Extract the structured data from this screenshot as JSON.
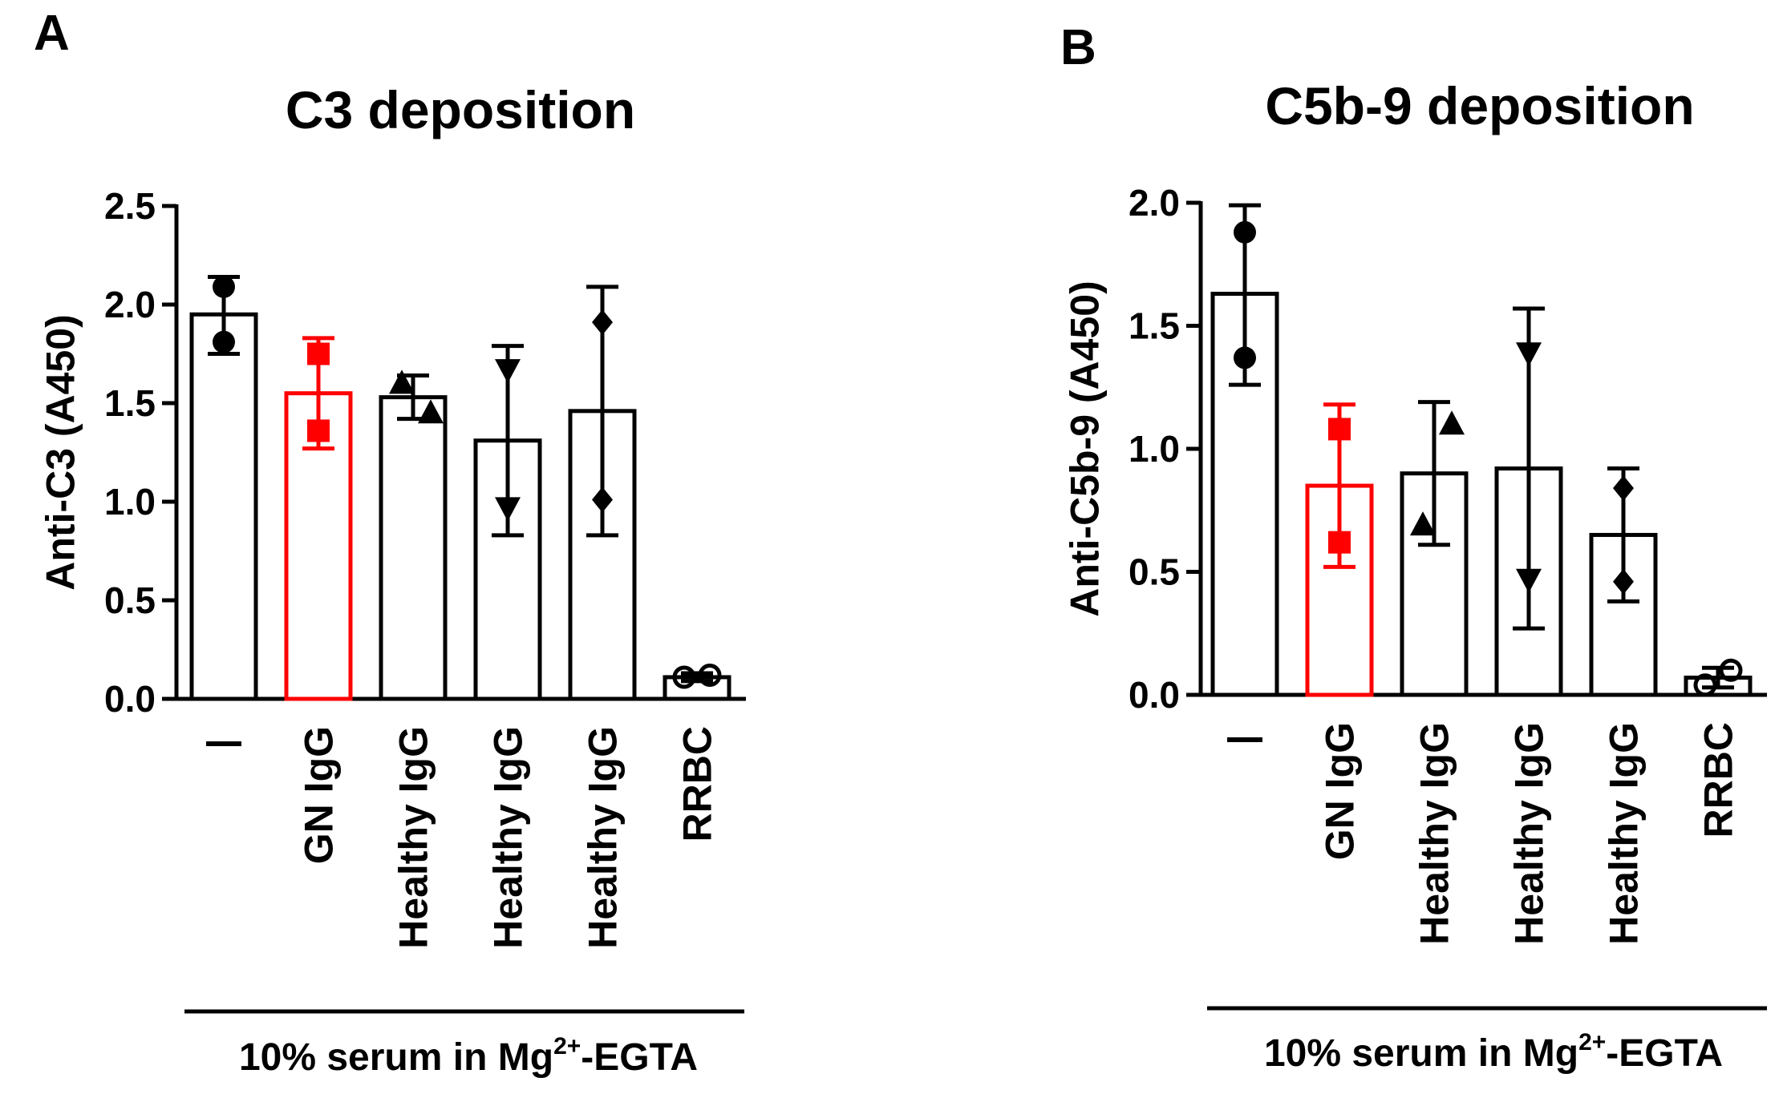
{
  "figure": {
    "width": 2223,
    "height": 1375
  },
  "chart_data": [
    {
      "panel": "A",
      "type": "bar",
      "title": "C3 deposition",
      "ylabel": "Anti-C3 (A450)",
      "xlabel": "",
      "ylim": [
        0,
        2.5
      ],
      "yticks": [
        0.0,
        0.5,
        1.0,
        1.5,
        2.0,
        2.5
      ],
      "ytick_labels": [
        "0.0",
        "0.5",
        "1.0",
        "1.5",
        "2.0",
        "2.5"
      ],
      "categories": [
        "—",
        "GN IgG",
        "Healthy IgG",
        "Healthy IgG",
        "Healthy IgG",
        "RRBC"
      ],
      "values": [
        1.95,
        1.55,
        1.53,
        1.31,
        1.46,
        0.11
      ],
      "error_low": [
        1.75,
        1.27,
        1.42,
        0.83,
        0.83,
        0.09
      ],
      "error_high": [
        2.14,
        1.83,
        1.64,
        1.79,
        2.09,
        0.13
      ],
      "points": [
        [
          2.09,
          1.81
        ],
        [
          1.75,
          1.36
        ],
        [
          1.45,
          1.6
        ],
        [
          1.67,
          0.97
        ],
        [
          1.91,
          1.01
        ],
        [
          0.11,
          0.12
        ]
      ],
      "markers": [
        "circle",
        "square",
        "triangle-up",
        "triangle-down",
        "diamond",
        "open-circle"
      ],
      "colors": [
        "#000000",
        "#ff0000",
        "#000000",
        "#000000",
        "#000000",
        "#000000"
      ],
      "group_label": {
        "prefix": "10% serum in Mg",
        "sup": "2+",
        "suffix": "-EGTA"
      }
    },
    {
      "panel": "B",
      "type": "bar",
      "title": "C5b-9 deposition",
      "ylabel": "Anti-C5b-9 (A450)",
      "xlabel": "",
      "ylim": [
        0,
        2.0
      ],
      "yticks": [
        0.0,
        0.5,
        1.0,
        1.5,
        2.0
      ],
      "ytick_labels": [
        "0.0",
        "0.5",
        "1.0",
        "1.5",
        "2.0"
      ],
      "categories": [
        "—",
        "GN IgG",
        "Healthy IgG",
        "Healthy IgG",
        "Healthy IgG",
        "RRBC"
      ],
      "values": [
        1.63,
        0.85,
        0.9,
        0.92,
        0.65,
        0.07
      ],
      "error_low": [
        1.26,
        0.52,
        0.61,
        0.27,
        0.38,
        0.03
      ],
      "error_high": [
        1.99,
        1.18,
        1.19,
        1.57,
        0.92,
        0.11
      ],
      "points": [
        [
          1.88,
          1.37
        ],
        [
          1.08,
          0.62
        ],
        [
          1.1,
          0.69
        ],
        [
          1.39,
          0.47
        ],
        [
          0.84,
          0.46
        ],
        [
          0.04,
          0.1
        ]
      ],
      "markers": [
        "circle",
        "square",
        "triangle-up",
        "triangle-down",
        "diamond",
        "open-circle"
      ],
      "colors": [
        "#000000",
        "#ff0000",
        "#000000",
        "#000000",
        "#000000",
        "#000000"
      ],
      "group_label": {
        "prefix": "10% serum in Mg",
        "sup": "2+",
        "suffix": "-EGTA"
      }
    }
  ]
}
